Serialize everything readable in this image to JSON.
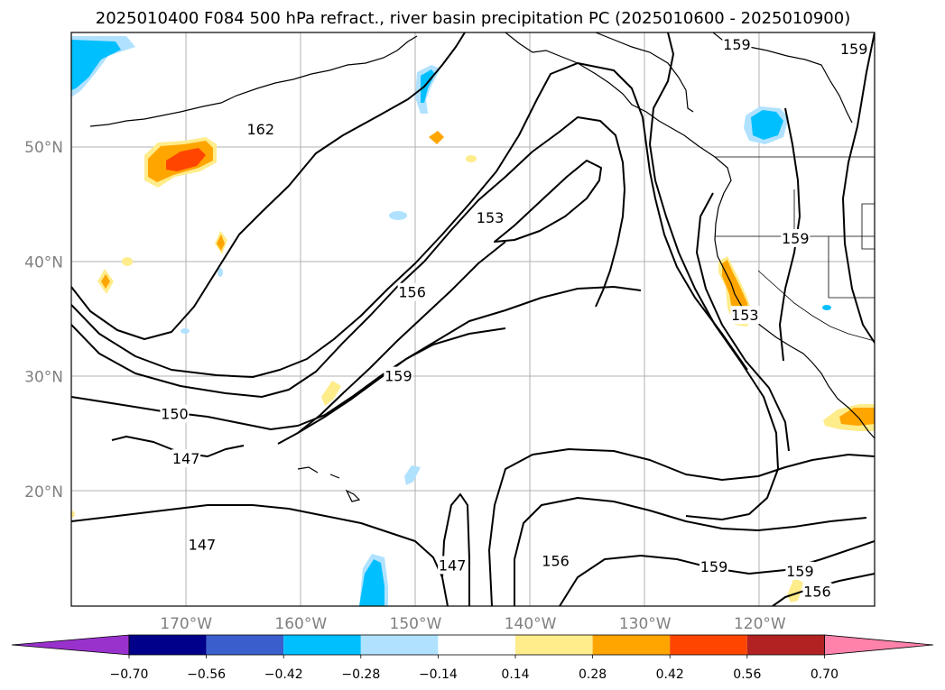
{
  "title": "2025010400 F084 500 hPa refract., river basin precipitation PC (2025010600 - 2025010900)",
  "map": {
    "lon_range": [
      -180,
      -110
    ],
    "lat_range": [
      10,
      60
    ],
    "lon_ticks": [
      {
        "value": -170,
        "label": "170°W"
      },
      {
        "value": -160,
        "label": "160°W"
      },
      {
        "value": -150,
        "label": "150°W"
      },
      {
        "value": -140,
        "label": "140°W"
      },
      {
        "value": -130,
        "label": "130°W"
      },
      {
        "value": -120,
        "label": "120°W"
      }
    ],
    "lat_ticks": [
      {
        "value": 50,
        "label": "50°N"
      },
      {
        "value": 40,
        "label": "40°N"
      },
      {
        "value": 30,
        "label": "30°N"
      },
      {
        "value": 20,
        "label": "20°N"
      }
    ],
    "grid": true,
    "contour_labels": [
      {
        "text": "162",
        "lon": -163.5,
        "lat": 51.5
      },
      {
        "text": "153",
        "lon": -143.5,
        "lat": 43.8
      },
      {
        "text": "156",
        "lon": -150.3,
        "lat": 37.3
      },
      {
        "text": "159",
        "lon": -151.5,
        "lat": 30.0
      },
      {
        "text": "150",
        "lon": -171.0,
        "lat": 26.7
      },
      {
        "text": "147",
        "lon": -170.0,
        "lat": 22.8
      },
      {
        "text": "147",
        "lon": -168.6,
        "lat": 15.3
      },
      {
        "text": "147",
        "lon": -146.8,
        "lat": 13.5
      },
      {
        "text": "156",
        "lon": -137.8,
        "lat": 13.9
      },
      {
        "text": "159",
        "lon": -124.0,
        "lat": 13.4
      },
      {
        "text": "159",
        "lon": -116.5,
        "lat": 13.0
      },
      {
        "text": "156",
        "lon": -115.0,
        "lat": 11.2
      },
      {
        "text": "153",
        "lon": -121.3,
        "lat": 35.3
      },
      {
        "text": "159",
        "lon": -116.9,
        "lat": 42.0
      },
      {
        "text": "159",
        "lon": -122.0,
        "lat": 58.9
      },
      {
        "text": "159",
        "lon": -111.8,
        "lat": 58.5
      }
    ]
  },
  "colorbar": {
    "tick_labels": [
      "−0.70",
      "−0.56",
      "−0.42",
      "−0.28",
      "−0.14",
      "0.14",
      "0.28",
      "0.42",
      "0.56",
      "0.70"
    ],
    "colors": [
      "#9932cc",
      "#00008b",
      "#3a5fcd",
      "#00bfff",
      "#b0e2ff",
      "#ffffff",
      "#ffec8b",
      "#ffa500",
      "#ff4500",
      "#b22222",
      "#ff82ab"
    ]
  },
  "chart_data": {
    "type": "heatmap",
    "variable": "500 hPa refract., river basin precipitation PC",
    "contour_levels": [
      147,
      150,
      153,
      156,
      159,
      162
    ],
    "colorbar_levels": [
      -0.7,
      -0.56,
      -0.42,
      -0.28,
      -0.14,
      0.14,
      0.28,
      0.42,
      0.56,
      0.7
    ],
    "colors": {
      "below_-0.70": "#9932cc",
      "-0.70_-0.56": "#00008b",
      "-0.56_-0.42": "#3a5fcd",
      "-0.42_-0.28": "#00bfff",
      "-0.28_-0.14": "#b0e2ff",
      "-0.14_0.14": "#ffffff",
      "0.14_0.28": "#ffec8b",
      "0.28_0.42": "#ffa500",
      "0.42_0.56": "#ff4500",
      "0.56_0.70": "#b22222",
      "above_0.70": "#ff82ab"
    }
  }
}
